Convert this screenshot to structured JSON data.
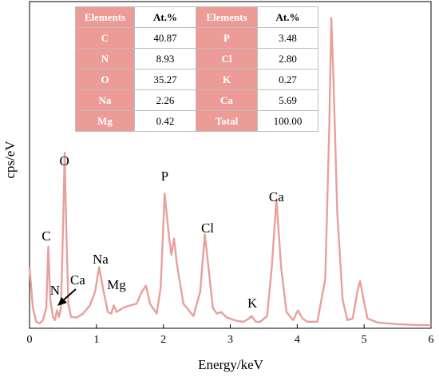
{
  "chart_data": {
    "type": "line",
    "xlabel": "Energy/keV",
    "ylabel": "cps/eV",
    "xlim": [
      0,
      6
    ],
    "x_ticks": [
      "0",
      "1",
      "2",
      "3",
      "4",
      "5",
      "6"
    ],
    "y_ticks_visible": false,
    "line_color": "#e8a09c",
    "header_color": "#ec9b97",
    "series": [
      {
        "x": [
          0.0,
          0.05,
          0.1,
          0.15,
          0.2,
          0.25,
          0.28,
          0.31,
          0.35,
          0.38,
          0.41,
          0.44,
          0.47,
          0.5,
          0.525,
          0.55,
          0.58,
          0.62,
          0.7,
          0.8,
          0.9,
          0.98,
          1.04,
          1.1,
          1.17,
          1.22,
          1.26,
          1.3,
          1.4,
          1.5,
          1.6,
          1.68,
          1.74,
          1.8,
          1.9,
          1.96,
          2.02,
          2.08,
          2.12,
          2.16,
          2.2,
          2.3,
          2.45,
          2.55,
          2.62,
          2.68,
          2.74,
          2.8,
          2.86,
          2.95,
          3.1,
          3.2,
          3.28,
          3.32,
          3.38,
          3.45,
          3.55,
          3.62,
          3.69,
          3.76,
          3.84,
          3.94,
          4.01,
          4.08,
          4.15,
          4.3,
          4.42,
          4.48,
          4.51,
          4.54,
          4.6,
          4.68,
          4.75,
          4.83,
          4.9,
          4.94,
          4.98,
          5.05,
          5.2,
          5.5,
          5.8,
          6.0
        ],
        "y": [
          75,
          25,
          8,
          6,
          10,
          25,
          100,
          35,
          14,
          10,
          22,
          14,
          25,
          120,
          215,
          120,
          30,
          14,
          13,
          18,
          28,
          45,
          75,
          48,
          20,
          18,
          28,
          20,
          25,
          28,
          30,
          45,
          52,
          30,
          18,
          50,
          165,
          115,
          90,
          110,
          80,
          30,
          15,
          45,
          115,
          70,
          25,
          18,
          20,
          13,
          9,
          8,
          12,
          15,
          8,
          8,
          15,
          75,
          158,
          75,
          20,
          10,
          22,
          12,
          8,
          8,
          60,
          250,
          380,
          310,
          140,
          35,
          10,
          12,
          45,
          58,
          40,
          12,
          7,
          5,
          4,
          4
        ]
      }
    ],
    "annotations": [
      {
        "text": "C",
        "x": 0.25
      },
      {
        "text": "O",
        "x": 0.52
      },
      {
        "text": "N",
        "x": 0.38
      },
      {
        "text": "Ca",
        "x": 0.72
      },
      {
        "text": "Na",
        "x": 1.06
      },
      {
        "text": "Mg",
        "x": 1.3
      },
      {
        "text": "P",
        "x": 2.02
      },
      {
        "text": "Cl",
        "x": 2.66
      },
      {
        "text": "K",
        "x": 3.33
      },
      {
        "text": "Ca",
        "x": 3.69
      }
    ]
  },
  "table": {
    "headers": [
      "Elements",
      "At.%",
      "Elements",
      "At.%"
    ],
    "rows": [
      [
        "C",
        "40.87",
        "P",
        "3.48"
      ],
      [
        "N",
        "8.93",
        "Cl",
        "2.80"
      ],
      [
        "O",
        "35.27",
        "K",
        "0.27"
      ],
      [
        "Na",
        "2.26",
        "Ca",
        "5.69"
      ],
      [
        "Mg",
        "0.42",
        "Total",
        "100.00"
      ]
    ]
  }
}
